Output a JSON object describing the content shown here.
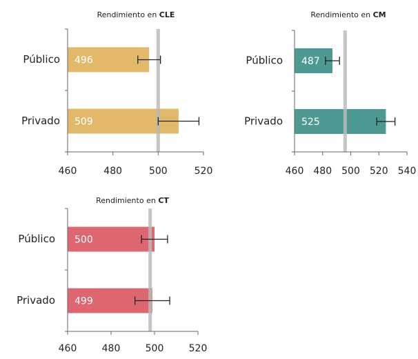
{
  "chart_data": [
    {
      "type": "bar",
      "orientation": "horizontal",
      "title": "Rendimiento en",
      "subject": "CLE",
      "categories": [
        "Público",
        "Privado"
      ],
      "values": [
        496,
        509
      ],
      "errors": [
        5,
        9
      ],
      "color": "#e2b96a",
      "xlim": [
        460,
        520
      ],
      "xticks": [
        460,
        480,
        500,
        520
      ],
      "reference": 500
    },
    {
      "type": "bar",
      "orientation": "horizontal",
      "title": "Rendimiento en",
      "subject": "CM",
      "categories": [
        "Público",
        "Privado"
      ],
      "values": [
        487,
        525
      ],
      "errors": [
        5,
        6.5
      ],
      "color": "#4e9a92",
      "xlim": [
        460,
        540
      ],
      "xticks": [
        460,
        480,
        500,
        520,
        540
      ],
      "reference": 496
    },
    {
      "type": "bar",
      "orientation": "horizontal",
      "title": "Rendimiento en",
      "subject": "CT",
      "categories": [
        "Público",
        "Privado"
      ],
      "values": [
        500,
        499
      ],
      "errors": [
        6,
        8
      ],
      "color": "#de6670",
      "xlim": [
        460,
        520
      ],
      "xticks": [
        460,
        480,
        500,
        520
      ],
      "reference": 498
    }
  ]
}
